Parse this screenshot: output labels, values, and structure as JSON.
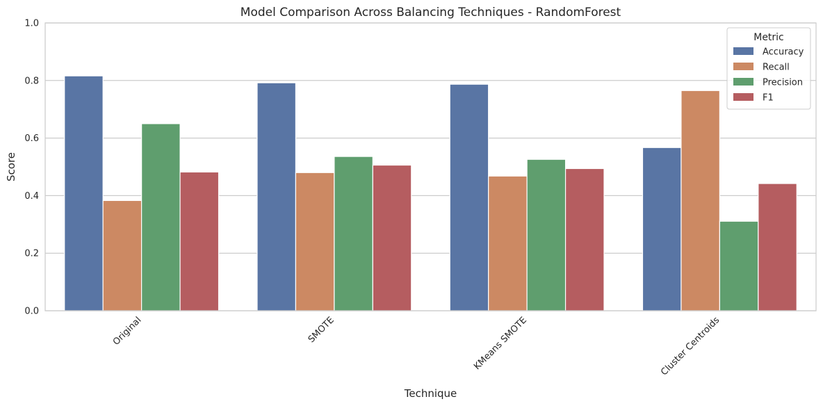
{
  "chart_data": {
    "type": "bar",
    "title": "Model Comparison Across Balancing Techniques - RandomForest",
    "xlabel": "Technique",
    "ylabel": "Score",
    "ylim": [
      0,
      1.0
    ],
    "yticks": [
      "0.0",
      "0.2",
      "0.4",
      "0.6",
      "0.8",
      "1.0"
    ],
    "grid": true,
    "categories": [
      "Original",
      "SMOTE",
      "KMeans SMOTE",
      "Cluster Centroids"
    ],
    "legend": {
      "title": "Metric",
      "position": "top-right"
    },
    "series": [
      {
        "name": "Accuracy",
        "color": "#5975a4",
        "values": [
          0.816,
          0.792,
          0.787,
          0.567
        ]
      },
      {
        "name": "Recall",
        "color": "#cc8963",
        "values": [
          0.383,
          0.48,
          0.468,
          0.765
        ]
      },
      {
        "name": "Precision",
        "color": "#5f9e6e",
        "values": [
          0.65,
          0.536,
          0.526,
          0.311
        ]
      },
      {
        "name": "F1",
        "color": "#b55d60",
        "values": [
          0.482,
          0.506,
          0.494,
          0.442
        ]
      }
    ]
  }
}
